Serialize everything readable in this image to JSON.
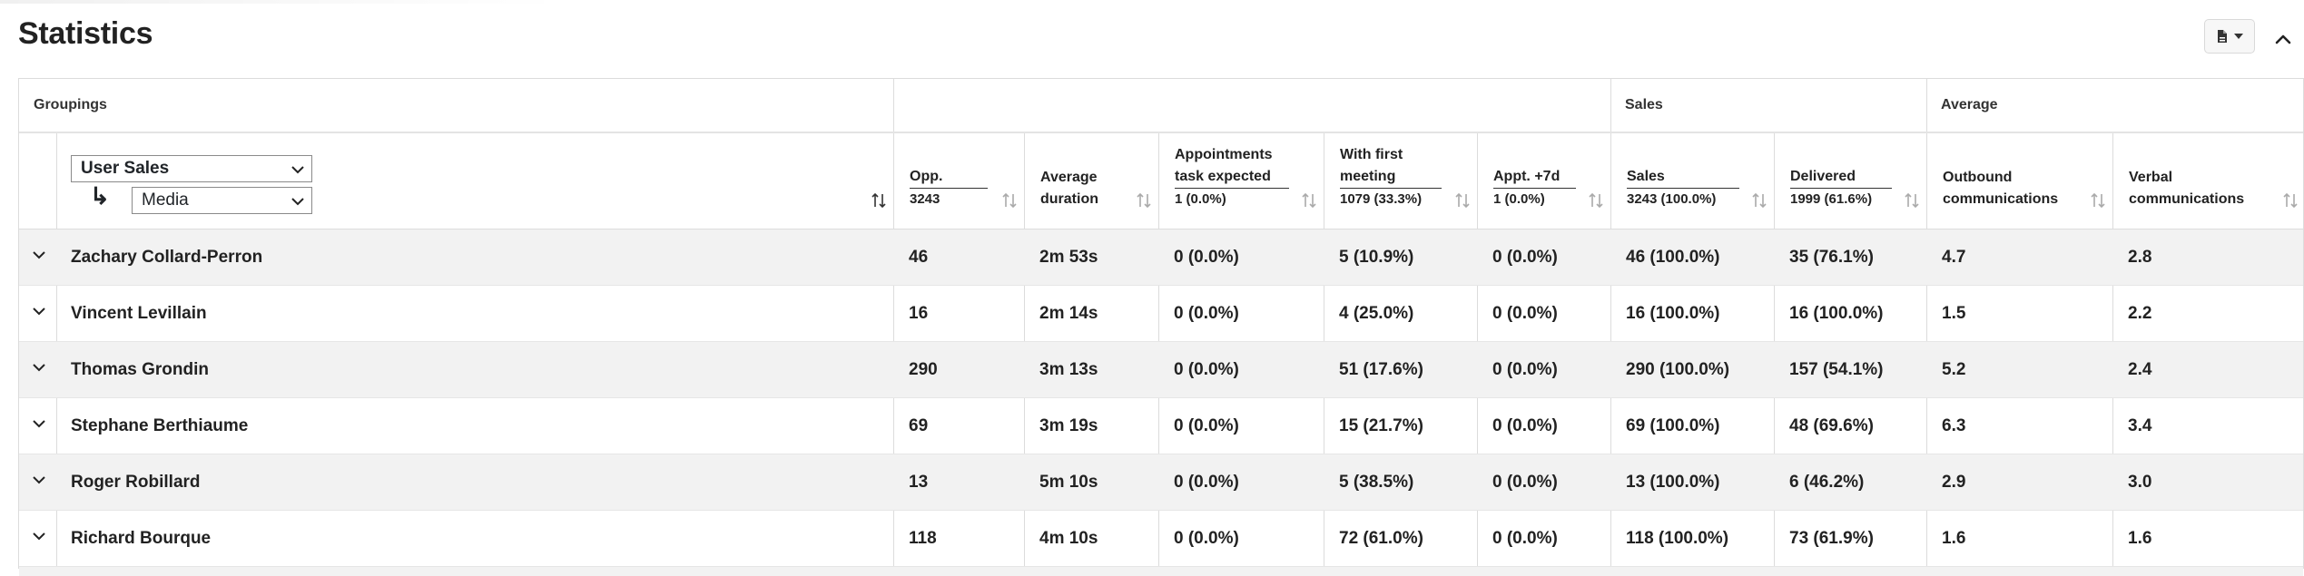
{
  "page": {
    "title": "Statistics"
  },
  "toolbar": {
    "export_icon": "file-export-icon",
    "dropdown_icon": "caret-down-icon",
    "collapse_icon": "chevron-up-icon"
  },
  "table": {
    "group_header": {
      "groupings": "Groupings",
      "sales": "Sales",
      "average": "Average"
    },
    "groupings": {
      "primary": "User Sales",
      "secondary": "Media",
      "arrow": "↳"
    },
    "columns": [
      {
        "l1": "Opp.",
        "l2": "3243",
        "underline": true
      },
      {
        "l1": "Average",
        "l2": "duration",
        "underline": false
      },
      {
        "l0": "Appointments",
        "l1": "task expected",
        "l2": "1 (0.0%)",
        "underline": true
      },
      {
        "l0": "With first",
        "l1": "meeting",
        "l2": "1079 (33.3%)",
        "underline": true
      },
      {
        "l1": "Appt. +7d",
        "l2": "1 (0.0%)",
        "underline": true
      },
      {
        "l1": "Sales",
        "l2": "3243 (100.0%)",
        "underline": true
      },
      {
        "l1": "Delivered",
        "l2": "1999 (61.6%)",
        "underline": true
      },
      {
        "l1": "Outbound",
        "l2": "communications",
        "underline": false
      },
      {
        "l1": "Verbal",
        "l2": "communications",
        "underline": false
      }
    ],
    "rows": [
      {
        "name": "Zachary Collard-Perron",
        "c": [
          "46",
          "2m 53s",
          "0 (0.0%)",
          "5 (10.9%)",
          "0 (0.0%)",
          "46 (100.0%)",
          "35 (76.1%)",
          "4.7",
          "2.8"
        ]
      },
      {
        "name": "Vincent Levillain",
        "c": [
          "16",
          "2m 14s",
          "0 (0.0%)",
          "4 (25.0%)",
          "0 (0.0%)",
          "16 (100.0%)",
          "16 (100.0%)",
          "1.5",
          "2.2"
        ]
      },
      {
        "name": "Thomas Grondin",
        "c": [
          "290",
          "3m 13s",
          "0 (0.0%)",
          "51 (17.6%)",
          "0 (0.0%)",
          "290 (100.0%)",
          "157 (54.1%)",
          "5.2",
          "2.4"
        ]
      },
      {
        "name": "Stephane Berthiaume",
        "c": [
          "69",
          "3m 19s",
          "0 (0.0%)",
          "15 (21.7%)",
          "0 (0.0%)",
          "69 (100.0%)",
          "48 (69.6%)",
          "6.3",
          "3.4"
        ]
      },
      {
        "name": "Roger Robillard",
        "c": [
          "13",
          "5m 10s",
          "0 (0.0%)",
          "5 (38.5%)",
          "0 (0.0%)",
          "13 (100.0%)",
          "6 (46.2%)",
          "2.9",
          "3.0"
        ]
      },
      {
        "name": "Richard Bourque",
        "c": [
          "118",
          "4m 10s",
          "0 (0.0%)",
          "72 (61.0%)",
          "0 (0.0%)",
          "118 (100.0%)",
          "73 (61.9%)",
          "1.6",
          "1.6"
        ]
      }
    ]
  }
}
